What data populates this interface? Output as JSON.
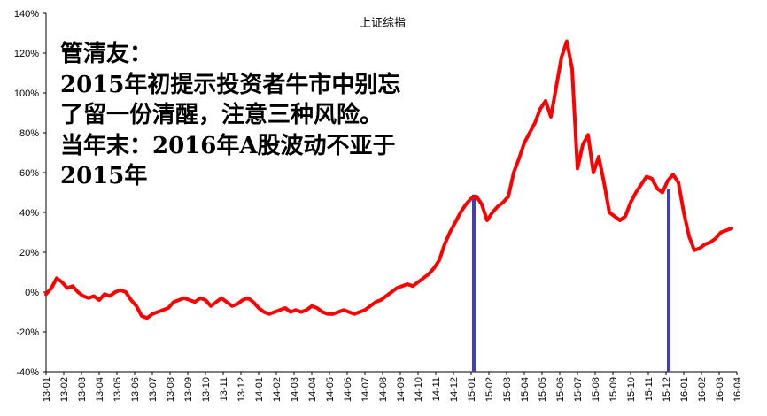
{
  "chart_data": {
    "type": "line",
    "title": "上证综指",
    "x": [
      "13-01",
      "13-02",
      "13-03",
      "13-04",
      "13-05",
      "13-06",
      "13-07",
      "13-08",
      "13-09",
      "13-10",
      "13-11",
      "13-12",
      "14-01",
      "14-02",
      "14-03",
      "14-04",
      "14-05",
      "14-06",
      "14-07",
      "14-08",
      "14-09",
      "14-10",
      "14-11",
      "14-12",
      "15-01",
      "15-02",
      "15-03",
      "15-04",
      "15-05",
      "15-06",
      "15-07",
      "15-08",
      "15-09",
      "15-10",
      "15-11",
      "15-12",
      "16-01",
      "16-02",
      "16-03",
      "16-04"
    ],
    "y_ticks": [
      "-40%",
      "-20%",
      "0%",
      "20%",
      "40%",
      "60%",
      "80%",
      "100%",
      "120%",
      "140%"
    ],
    "ylim": [
      -40,
      140
    ],
    "y_unit": "%",
    "series": [
      {
        "color": "#ff0000",
        "points": [
          [
            0,
            -1
          ],
          [
            0.3,
            2
          ],
          [
            0.6,
            7
          ],
          [
            0.9,
            5
          ],
          [
            1.2,
            2
          ],
          [
            1.5,
            3
          ],
          [
            1.8,
            0
          ],
          [
            2.1,
            -2
          ],
          [
            2.4,
            -3
          ],
          [
            2.7,
            -2
          ],
          [
            3.0,
            -4
          ],
          [
            3.3,
            -1
          ],
          [
            3.6,
            -2
          ],
          [
            3.9,
            0
          ],
          [
            4.2,
            1
          ],
          [
            4.5,
            0
          ],
          [
            4.8,
            -4
          ],
          [
            5.1,
            -7
          ],
          [
            5.4,
            -12
          ],
          [
            5.7,
            -13
          ],
          [
            6.0,
            -11
          ],
          [
            6.3,
            -10
          ],
          [
            6.6,
            -9
          ],
          [
            6.9,
            -8
          ],
          [
            7.2,
            -5
          ],
          [
            7.5,
            -4
          ],
          [
            7.8,
            -3
          ],
          [
            8.1,
            -4
          ],
          [
            8.4,
            -5
          ],
          [
            8.7,
            -3
          ],
          [
            9.0,
            -4
          ],
          [
            9.3,
            -7
          ],
          [
            9.6,
            -5
          ],
          [
            9.9,
            -3
          ],
          [
            10.2,
            -5
          ],
          [
            10.5,
            -7
          ],
          [
            10.8,
            -6
          ],
          [
            11.1,
            -4
          ],
          [
            11.4,
            -3
          ],
          [
            11.7,
            -5
          ],
          [
            12.0,
            -8
          ],
          [
            12.3,
            -10
          ],
          [
            12.6,
            -11
          ],
          [
            12.9,
            -10
          ],
          [
            13.2,
            -9
          ],
          [
            13.5,
            -8
          ],
          [
            13.8,
            -10
          ],
          [
            14.1,
            -9
          ],
          [
            14.4,
            -10
          ],
          [
            14.7,
            -9
          ],
          [
            15.0,
            -7
          ],
          [
            15.3,
            -8
          ],
          [
            15.6,
            -10
          ],
          [
            15.9,
            -11
          ],
          [
            16.2,
            -11
          ],
          [
            16.5,
            -10
          ],
          [
            16.8,
            -9
          ],
          [
            17.1,
            -10
          ],
          [
            17.4,
            -11
          ],
          [
            17.7,
            -10
          ],
          [
            18.0,
            -9
          ],
          [
            18.3,
            -7
          ],
          [
            18.6,
            -5
          ],
          [
            18.9,
            -4
          ],
          [
            19.2,
            -2
          ],
          [
            19.5,
            0
          ],
          [
            19.8,
            2
          ],
          [
            20.1,
            3
          ],
          [
            20.4,
            4
          ],
          [
            20.7,
            3
          ],
          [
            21.0,
            5
          ],
          [
            21.3,
            7
          ],
          [
            21.6,
            9
          ],
          [
            21.9,
            12
          ],
          [
            22.2,
            16
          ],
          [
            22.5,
            24
          ],
          [
            22.8,
            30
          ],
          [
            23.1,
            35
          ],
          [
            23.4,
            40
          ],
          [
            23.7,
            44
          ],
          [
            24.0,
            47
          ],
          [
            24.3,
            48
          ],
          [
            24.6,
            44
          ],
          [
            24.9,
            36
          ],
          [
            25.2,
            40
          ],
          [
            25.5,
            43
          ],
          [
            25.8,
            45
          ],
          [
            26.1,
            48
          ],
          [
            26.4,
            60
          ],
          [
            26.7,
            67
          ],
          [
            27.0,
            75
          ],
          [
            27.3,
            80
          ],
          [
            27.6,
            85
          ],
          [
            27.9,
            92
          ],
          [
            28.2,
            96
          ],
          [
            28.5,
            88
          ],
          [
            28.8,
            103
          ],
          [
            29.1,
            118
          ],
          [
            29.4,
            126
          ],
          [
            29.7,
            112
          ],
          [
            30.0,
            62
          ],
          [
            30.3,
            74
          ],
          [
            30.6,
            79
          ],
          [
            30.9,
            60
          ],
          [
            31.2,
            68
          ],
          [
            31.5,
            55
          ],
          [
            31.8,
            40
          ],
          [
            32.1,
            38
          ],
          [
            32.4,
            36
          ],
          [
            32.7,
            38
          ],
          [
            33.0,
            45
          ],
          [
            33.3,
            50
          ],
          [
            33.6,
            54
          ],
          [
            33.9,
            58
          ],
          [
            34.2,
            57
          ],
          [
            34.5,
            52
          ],
          [
            34.8,
            50
          ],
          [
            35.1,
            56
          ],
          [
            35.4,
            59
          ],
          [
            35.7,
            55
          ],
          [
            36.0,
            40
          ],
          [
            36.3,
            28
          ],
          [
            36.6,
            21
          ],
          [
            36.9,
            22
          ],
          [
            37.2,
            24
          ],
          [
            37.5,
            25
          ],
          [
            37.8,
            27
          ],
          [
            38.1,
            30
          ],
          [
            38.4,
            31
          ],
          [
            38.7,
            32
          ]
        ]
      }
    ],
    "markers": [
      {
        "x": 24.15,
        "y_top": 49,
        "color": "#3d3dcc"
      },
      {
        "x": 35.15,
        "y_top": 52,
        "color": "#3d3dcc"
      }
    ],
    "grid": false,
    "legend": "none"
  },
  "annotation": {
    "lines": [
      "管清友：",
      "2015年初提示投资者牛市中别忘",
      "了留一份清醒，注意三种风险。",
      "当年末：2016年A股波动不亚于",
      "2015年"
    ]
  }
}
